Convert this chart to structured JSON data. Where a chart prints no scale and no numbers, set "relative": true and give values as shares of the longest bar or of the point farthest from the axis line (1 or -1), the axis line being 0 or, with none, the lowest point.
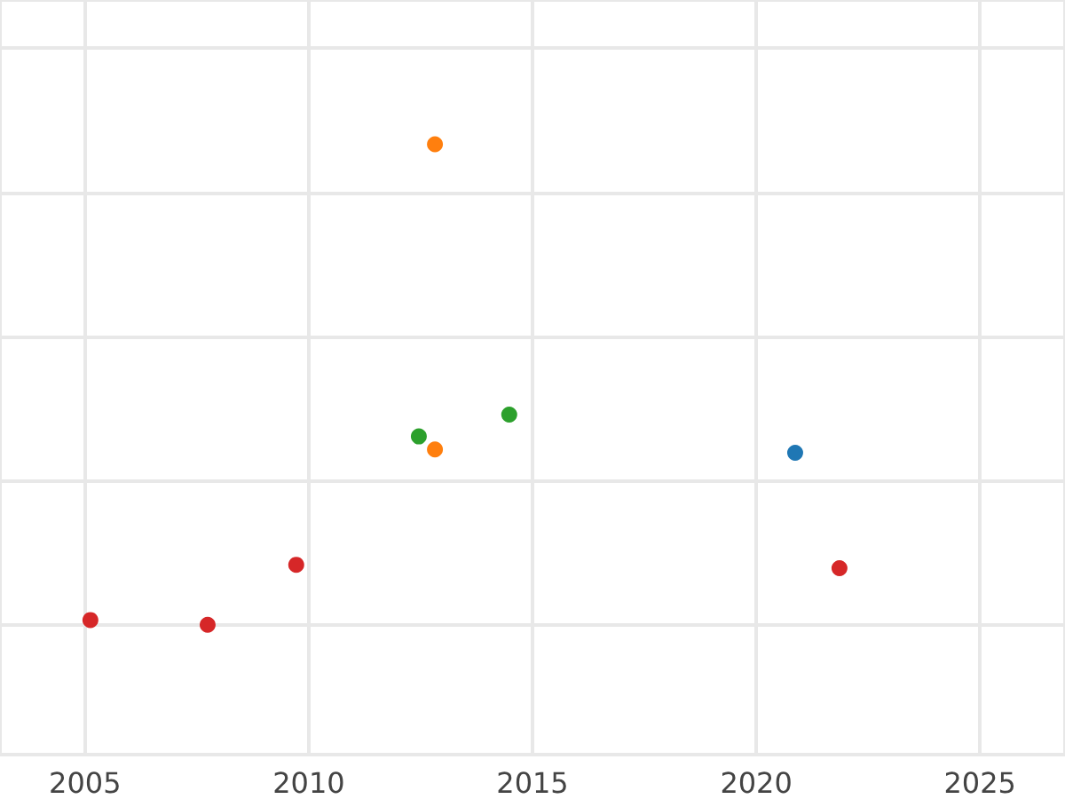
{
  "chart_data": {
    "type": "scatter",
    "relative": true,
    "xlim": [
      2003.1,
      2026.9
    ],
    "xticks": [
      2005,
      2010,
      2015,
      2020,
      2025
    ],
    "grid": true,
    "marker": "circle",
    "tick_labels": "x",
    "series": [
      {
        "color": "#1f77b4",
        "x": [
          2020.87
        ],
        "values": [
          0.358
        ]
      },
      {
        "color": "#ff7f0e",
        "x": [
          2012.82,
          2012.82
        ],
        "values": [
          1,
          0.365
        ]
      },
      {
        "color": "#2ca02c",
        "x": [
          2012.46,
          2014.48
        ],
        "values": [
          0.392,
          0.4375
        ]
      },
      {
        "color": "#d62728",
        "x": [
          2005.12,
          2007.74,
          2009.72,
          2021.86
        ],
        "values": [
          0.01,
          0,
          0.125,
          0.118
        ]
      }
    ]
  }
}
